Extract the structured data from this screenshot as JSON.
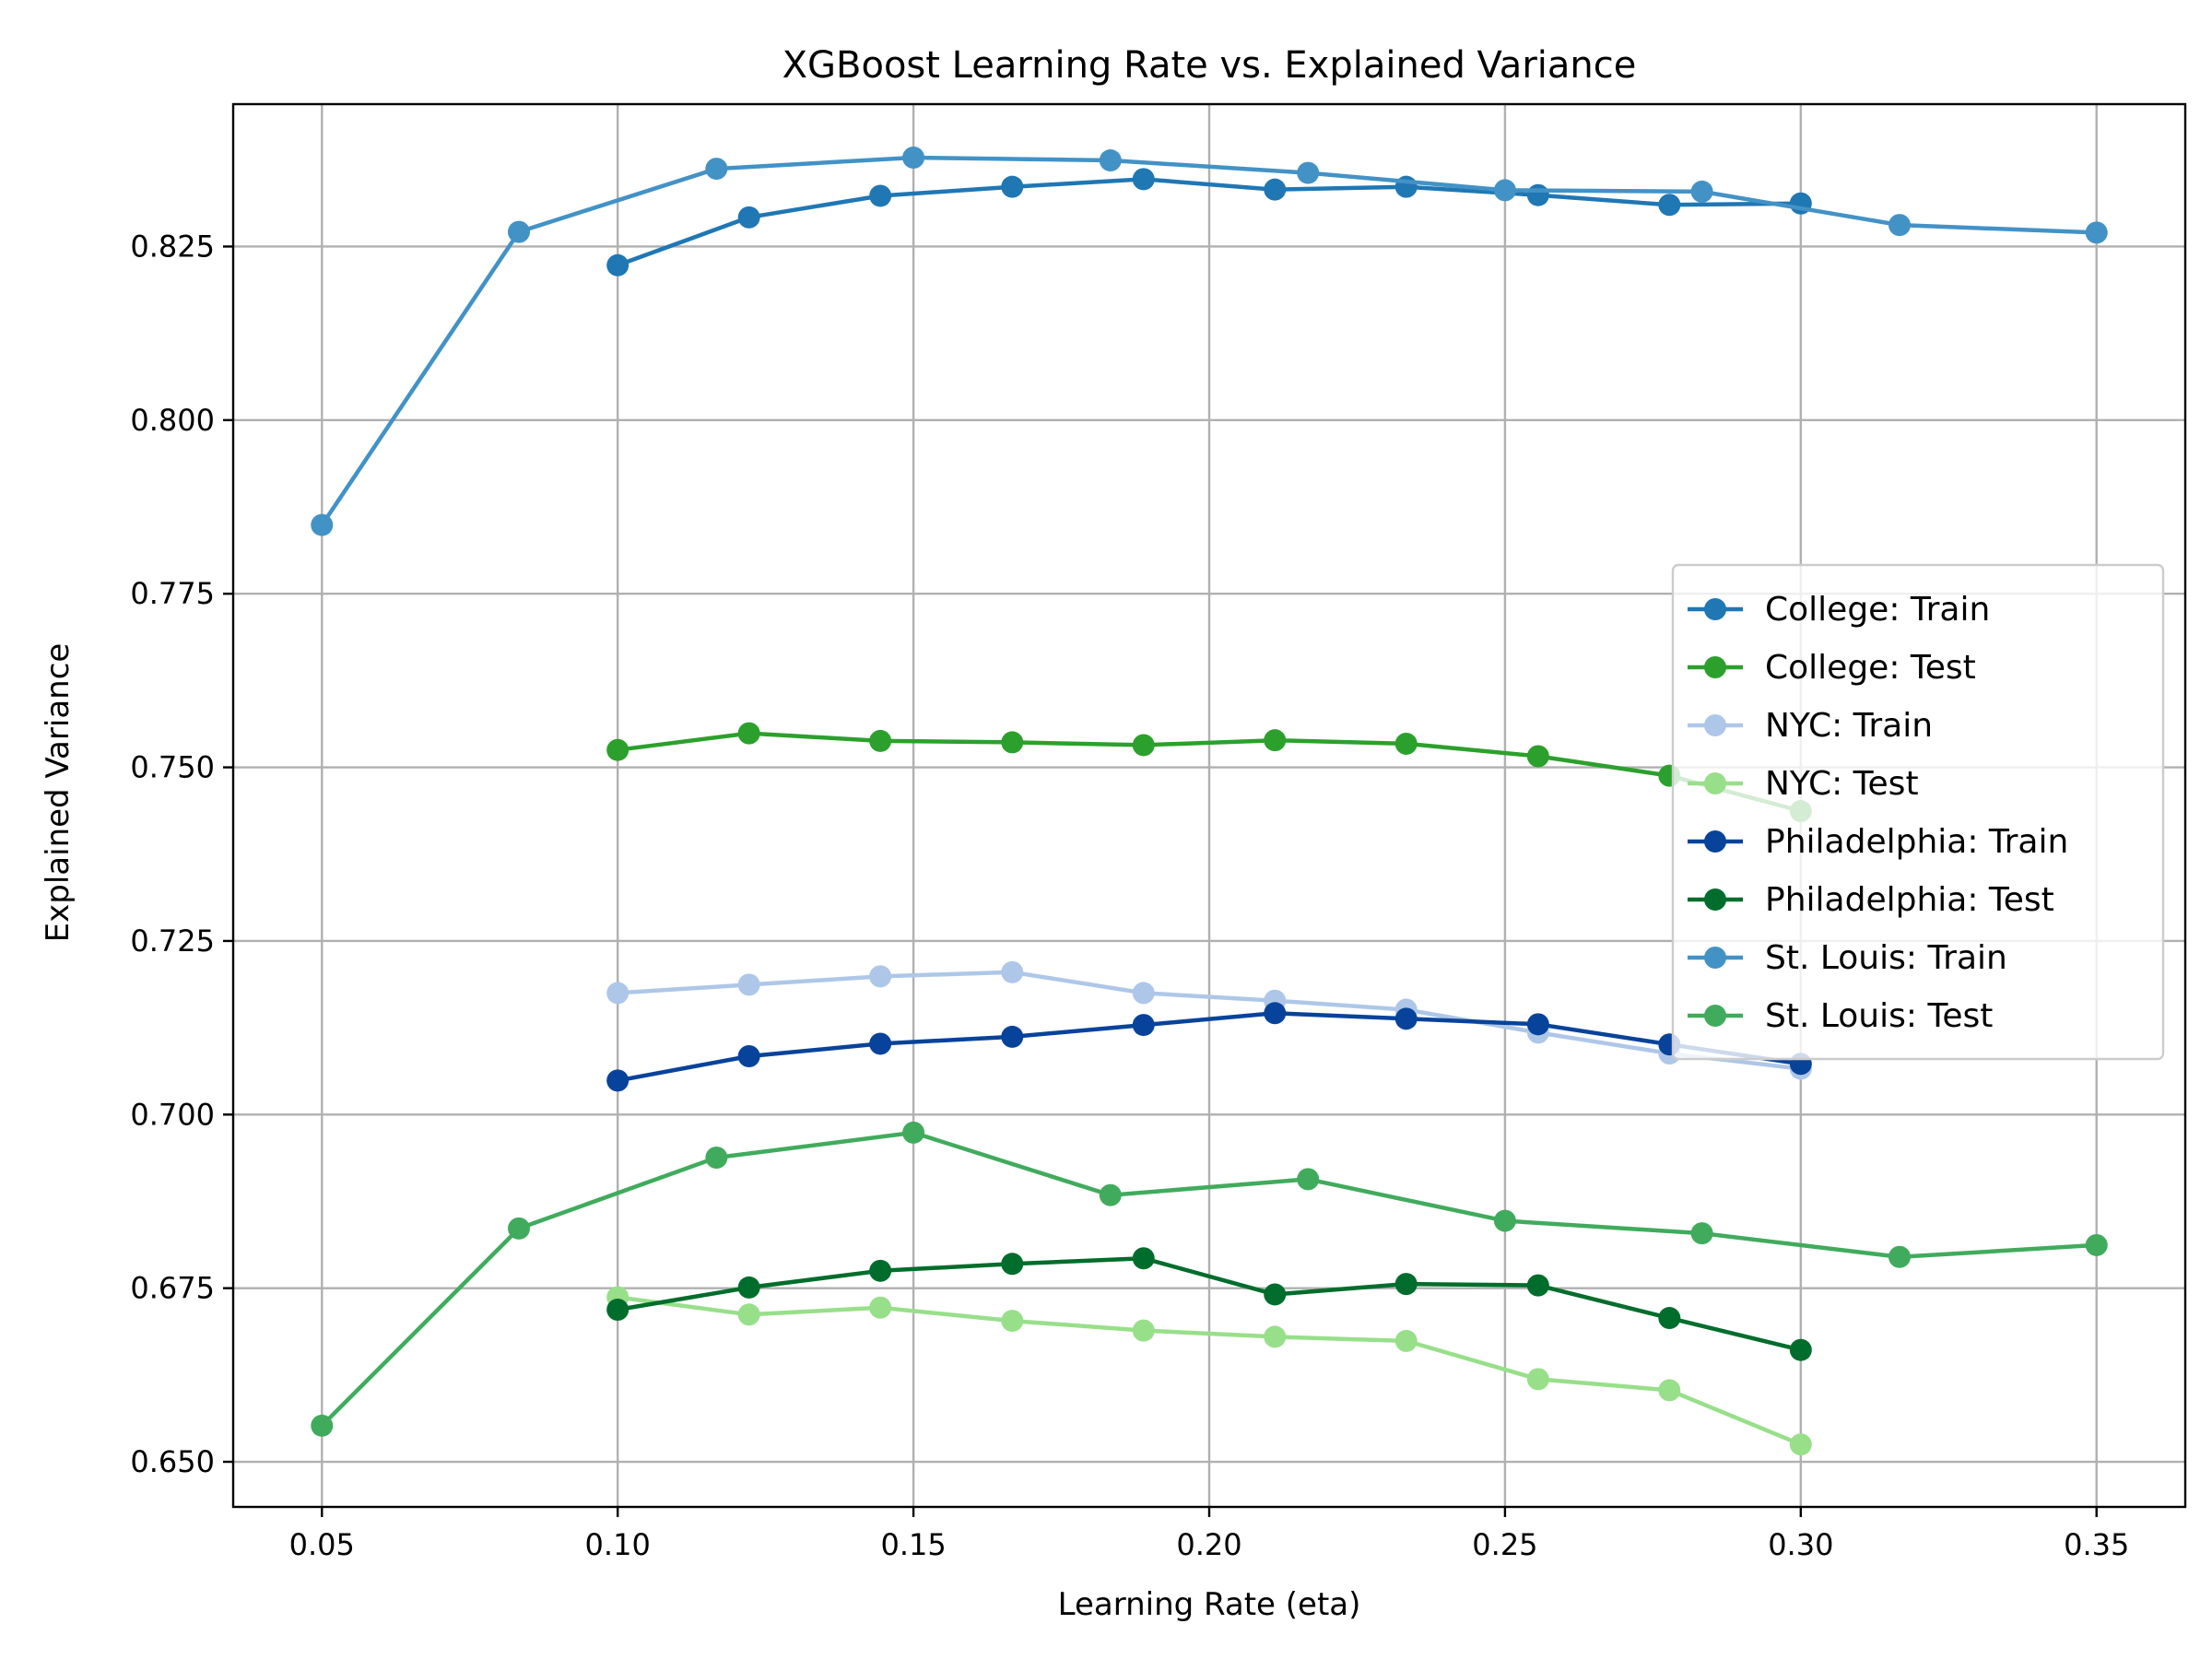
{
  "chart_data": {
    "type": "line",
    "title": "XGBoost Learning Rate vs. Explained Variance",
    "xlabel": "Learning Rate (eta)",
    "ylabel": "Explained Variance",
    "xlim": [
      0.035,
      0.365
    ],
    "ylim": [
      0.6435,
      0.8455
    ],
    "xticks": [
      0.05,
      0.1,
      0.15,
      0.2,
      0.25,
      0.3,
      0.35
    ],
    "xtick_labels": [
      "0.05",
      "0.10",
      "0.15",
      "0.20",
      "0.25",
      "0.30",
      "0.35"
    ],
    "yticks": [
      0.65,
      0.675,
      0.7,
      0.725,
      0.75,
      0.775,
      0.8,
      0.825
    ],
    "ytick_labels": [
      "0.650",
      "0.675",
      "0.700",
      "0.725",
      "0.750",
      "0.775",
      "0.800",
      "0.825"
    ],
    "grid": true,
    "legend_position": "center-right",
    "series": [
      {
        "name": "College: Train",
        "color": "#1f77b4",
        "x": [
          0.1,
          0.1222,
          0.1444,
          0.1667,
          0.1889,
          0.2111,
          0.2333,
          0.2556,
          0.2778,
          0.3
        ],
        "y": [
          0.8223,
          0.8292,
          0.8323,
          0.8336,
          0.8347,
          0.8332,
          0.8336,
          0.8324,
          0.831,
          0.8312
        ]
      },
      {
        "name": "College: Test",
        "color": "#2ca02c",
        "x": [
          0.1,
          0.1222,
          0.1444,
          0.1667,
          0.1889,
          0.2111,
          0.2333,
          0.2556,
          0.2778,
          0.3
        ],
        "y": [
          0.7525,
          0.7549,
          0.7538,
          0.7536,
          0.7532,
          0.7539,
          0.7534,
          0.7516,
          0.7488,
          0.7437
        ]
      },
      {
        "name": "NYC: Train",
        "color": "#aec7e8",
        "x": [
          0.1,
          0.1222,
          0.1444,
          0.1667,
          0.1889,
          0.2111,
          0.2333,
          0.2556,
          0.2778,
          0.3
        ],
        "y": [
          0.7175,
          0.7187,
          0.7199,
          0.7205,
          0.7175,
          0.7164,
          0.7151,
          0.7118,
          0.7088,
          0.7066
        ]
      },
      {
        "name": "NYC: Test",
        "color": "#98df8a",
        "x": [
          0.1,
          0.1222,
          0.1444,
          0.1667,
          0.1889,
          0.2111,
          0.2333,
          0.2556,
          0.2778,
          0.3
        ],
        "y": [
          0.6737,
          0.6712,
          0.6722,
          0.6703,
          0.6689,
          0.668,
          0.6674,
          0.6619,
          0.6603,
          0.6525
        ]
      },
      {
        "name": "Philadelphia: Train",
        "color": "#08439b",
        "x": [
          0.1,
          0.1222,
          0.1444,
          0.1667,
          0.1889,
          0.2111,
          0.2333,
          0.2556,
          0.2778,
          0.3
        ],
        "y": [
          0.7049,
          0.7084,
          0.7102,
          0.7112,
          0.7129,
          0.7146,
          0.7138,
          0.713,
          0.7101,
          0.7073
        ]
      },
      {
        "name": "Philadelphia: Test",
        "color": "#006d2c",
        "x": [
          0.1,
          0.1222,
          0.1444,
          0.1667,
          0.1889,
          0.2111,
          0.2333,
          0.2556,
          0.2778,
          0.3
        ],
        "y": [
          0.6719,
          0.6751,
          0.6775,
          0.6785,
          0.6793,
          0.6741,
          0.6756,
          0.6754,
          0.6707,
          0.6661
        ]
      },
      {
        "name": "St. Louis: Train",
        "color": "#4292c6",
        "x": [
          0.05,
          0.0833,
          0.1167,
          0.15,
          0.1833,
          0.2167,
          0.25,
          0.2833,
          0.3167,
          0.35
        ],
        "y": [
          0.7849,
          0.8271,
          0.8362,
          0.8378,
          0.8374,
          0.8356,
          0.8331,
          0.8329,
          0.8281,
          0.827
        ]
      },
      {
        "name": "St. Louis: Test",
        "color": "#41ab5d",
        "x": [
          0.05,
          0.0833,
          0.1167,
          0.15,
          0.1833,
          0.2167,
          0.25,
          0.2833,
          0.3167,
          0.35
        ],
        "y": [
          0.6552,
          0.6836,
          0.6938,
          0.6974,
          0.6884,
          0.6907,
          0.6847,
          0.6829,
          0.6795,
          0.6812
        ]
      }
    ]
  }
}
